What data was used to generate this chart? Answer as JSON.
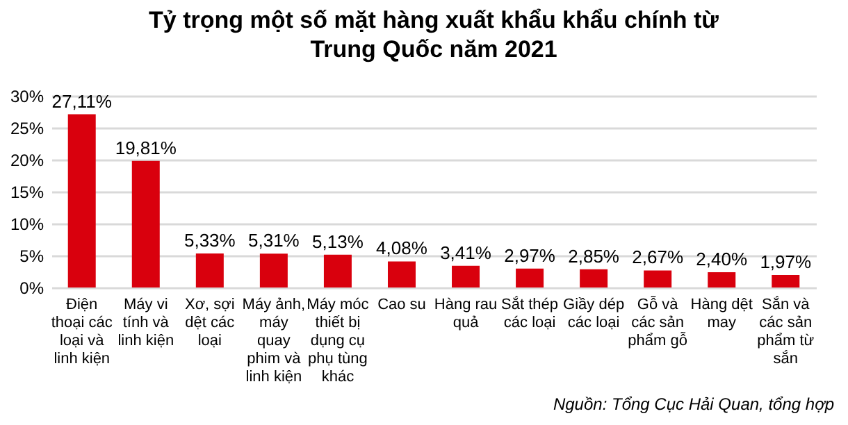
{
  "chart_data": {
    "type": "bar",
    "title": "Tỷ trọng một số mặt hàng xuất khẩu khẩu chính từ\nTrung Quốc năm 2021",
    "categories": [
      "Điện thoại các loại và linh kiện",
      "Máy vi tính và linh kiện",
      "Xơ, sợi dệt các loại",
      "Máy ảnh, máy quay phim và linh kiện",
      "Máy móc thiết bị dụng cụ phụ tùng khác",
      "Cao su",
      "Hàng rau quả",
      "Sắt thép các loại",
      "Giầy dép các loại",
      "Gỗ và các sản phẩm gỗ",
      "Hàng dệt may",
      "Sắn và các sản phẩm từ sắn"
    ],
    "values": [
      27.11,
      19.81,
      5.33,
      5.31,
      5.13,
      4.08,
      3.41,
      2.97,
      2.85,
      2.67,
      2.4,
      1.97
    ],
    "value_labels": [
      "27,11%",
      "19,81%",
      "5,33%",
      "5,31%",
      "5,13%",
      "4,08%",
      "3,41%",
      "2,97%",
      "2,85%",
      "2,67%",
      "2,40%",
      "1,97%"
    ],
    "color": "#d9000d",
    "ylim": [
      0,
      30
    ],
    "yticks": [
      {
        "value": 0,
        "label": "0%"
      },
      {
        "value": 5,
        "label": "5%"
      },
      {
        "value": 10,
        "label": "10%"
      },
      {
        "value": 15,
        "label": "15%"
      },
      {
        "value": 20,
        "label": "20%"
      },
      {
        "value": 25,
        "label": "25%"
      },
      {
        "value": 30,
        "label": "30%"
      }
    ],
    "grid": "y",
    "annotations": [
      "Nguồn: Tổng Cục Hải Quan, tổng hợp"
    ]
  }
}
